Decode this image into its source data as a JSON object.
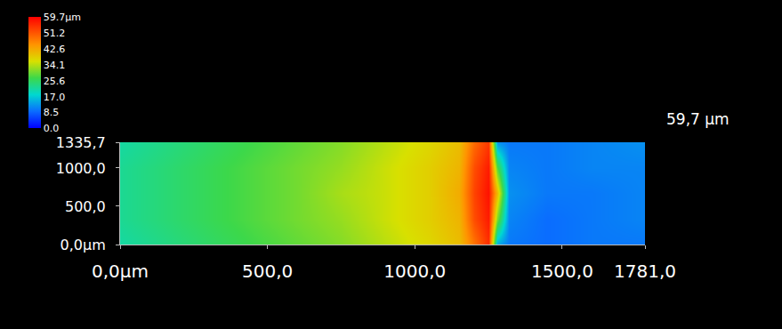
{
  "chart_data": {
    "type": "heatmap",
    "x": [
      0,
      150,
      300,
      450,
      600,
      750,
      900,
      1050,
      1150,
      1200,
      1250,
      1280,
      1320,
      1450,
      1600,
      1781
    ],
    "y": [
      0,
      330,
      670,
      1000,
      1335.7
    ],
    "z": [
      [
        21,
        23,
        25,
        27,
        29,
        31,
        34,
        37,
        40,
        48,
        55,
        14,
        10,
        9,
        10,
        10
      ],
      [
        22,
        24,
        26,
        28,
        30,
        32,
        35,
        38,
        41,
        52,
        57,
        30,
        11,
        9,
        10,
        11
      ],
      [
        22,
        24,
        26,
        28,
        30,
        33,
        35,
        38,
        42,
        53,
        58,
        40,
        12,
        10,
        10,
        11
      ],
      [
        22,
        24,
        26,
        28,
        30,
        32,
        35,
        38,
        41,
        52,
        57,
        28,
        11,
        10,
        11,
        11
      ],
      [
        21,
        23,
        25,
        27,
        29,
        31,
        34,
        37,
        40,
        49,
        54,
        12,
        10,
        10,
        11,
        12
      ]
    ],
    "xlim": [
      0,
      1781
    ],
    "xticks": [
      {
        "value": 0,
        "label": "0,0µm"
      },
      {
        "value": 500,
        "label": "500,0"
      },
      {
        "value": 1000,
        "label": "1000,0"
      },
      {
        "value": 1500,
        "label": "1500,0"
      },
      {
        "value": 1781,
        "label": "1781,0"
      }
    ],
    "ylim": [
      0,
      1335.7
    ],
    "yticks": [
      {
        "value": 0,
        "label": "0,0µm"
      },
      {
        "value": 500,
        "label": "500,0"
      },
      {
        "value": 1000,
        "label": "1000,0"
      },
      {
        "value": 1335.7,
        "label": "1335,7"
      }
    ],
    "colorbar": {
      "range": [
        0,
        59.7
      ],
      "ticks": [
        {
          "value": 59.7,
          "label": "59.7µm"
        },
        51.2,
        42.6,
        34.1,
        25.6,
        {
          "value": 17,
          "label": "17.0"
        },
        8.5,
        {
          "value": 0,
          "label": "0.0"
        }
      ]
    },
    "annotations": [
      {
        "text": "59,7 µm"
      }
    ],
    "grid": false
  }
}
